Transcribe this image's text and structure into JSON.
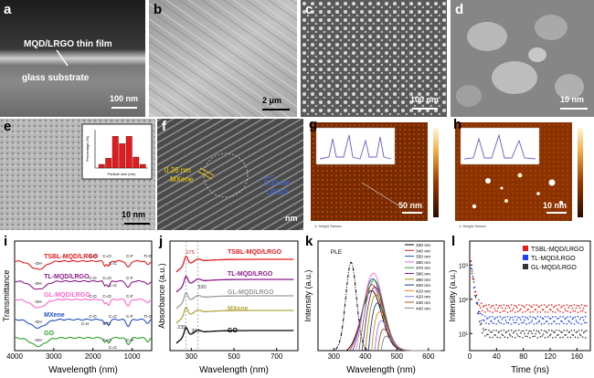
{
  "panels": {
    "a": {
      "label": "a",
      "film_text": "MQD/LRGO thin film",
      "substrate_text": "glass substrate",
      "scale": "100 nm"
    },
    "b": {
      "label": "b",
      "scale": "2 μm"
    },
    "c": {
      "label": "c",
      "scale": "100 nm"
    },
    "d": {
      "label": "d",
      "scale": "10 nm"
    },
    "e": {
      "label": "e",
      "scale": "10 nm",
      "inset_ylabel": "Percentage (%)",
      "inset_xlabel": "Particle size (nm)"
    },
    "f": {
      "label": "f",
      "mxene_text": "0.26 nm",
      "mxene_name": "MXene",
      "lrgo_text": "0.33 nm",
      "lrgo_name": "LRGO",
      "scale": "nm"
    },
    "g": {
      "label": "g",
      "scale": "50 nm",
      "footer": "1: Height Sensor"
    },
    "h": {
      "label": "h",
      "scale": "10 nm",
      "footer": "1: Height Sensor"
    },
    "i": {
      "label": "i"
    },
    "j": {
      "label": "j"
    },
    "k": {
      "label": "k"
    },
    "l": {
      "label": "l"
    }
  },
  "chart_data": [
    {
      "panel": "e-inset",
      "type": "bar",
      "values": [
        3,
        8,
        26,
        20,
        26,
        9,
        3
      ],
      "xlabel": "Particle size (nm)",
      "ylabel": "Percentage (%)"
    },
    {
      "panel": "i",
      "type": "line",
      "xlabel": "Wavelength (nm)",
      "ylabel": "Transmittance",
      "xlim": [
        4000,
        500
      ],
      "xticks": [
        "4000",
        "3000",
        "2000",
        "1000"
      ],
      "series": [
        {
          "name": "TSBL-MQD/LRGO",
          "color": "#e41a1c"
        },
        {
          "name": "TL-MQD/LRGO",
          "color": "#8b1a8b"
        },
        {
          "name": "GL-MQD/LRGO",
          "color": "#ff66cc"
        },
        {
          "name": "MXene",
          "color": "#1f4fbf"
        },
        {
          "name": "GO",
          "color": "#2ca02c"
        }
      ],
      "annotations": [
        "-OH",
        "-OH",
        "-OH",
        "-OH",
        "-OH",
        "C-O",
        "C=O",
        "C=C",
        "C-F",
        "Ti-O",
        "C-O",
        "C=O",
        "C=C",
        "C-F",
        "C-O",
        "C=O",
        "C-F",
        "C-O",
        "C=C",
        "C-O",
        "C-H",
        "C-F",
        "Ti-O",
        "C=O",
        "C=C",
        "C-O"
      ]
    },
    {
      "panel": "j",
      "type": "line",
      "xlabel": "Wavelength (nm)",
      "ylabel": "Absorbance (a.u.)",
      "xlim": [
        200,
        800
      ],
      "xticks": [
        "300",
        "500",
        "700"
      ],
      "annotations": [
        "275",
        "330",
        "235",
        "300"
      ],
      "series": [
        {
          "name": "TSBL-MQD/LRGO",
          "color": "#e41a1c"
        },
        {
          "name": "TL-MQD/LRGO",
          "color": "#8b1a8b"
        },
        {
          "name": "GL-MQD/LRGO",
          "color": "#9a9a9a"
        },
        {
          "name": "MXene",
          "color": "#b5a642"
        },
        {
          "name": "GO",
          "color": "#000000"
        }
      ]
    },
    {
      "panel": "k",
      "type": "line",
      "xlabel": "Wavelength (nm)",
      "ylabel": "Intensity (a.u.)",
      "xlim": [
        250,
        650
      ],
      "xticks": [
        "300",
        "400",
        "500",
        "600"
      ],
      "ple_label": "PLE",
      "excitation": [
        {
          "name": "330 nm",
          "color": "#000000"
        },
        {
          "name": "340 nm",
          "color": "#e41a1c"
        },
        {
          "name": "350 nm",
          "color": "#1f4fbf"
        },
        {
          "name": "360 nm",
          "color": "#ff66cc"
        },
        {
          "name": "370 nm",
          "color": "#2ca02c"
        },
        {
          "name": "380 nm",
          "color": "#8b1a8b"
        },
        {
          "name": "390 nm",
          "color": "#9a9a00"
        },
        {
          "name": "400 nm",
          "color": "#0b3d91"
        },
        {
          "name": "410 nm",
          "color": "#ff7f0e"
        },
        {
          "name": "420 nm",
          "color": "#7f7fff"
        },
        {
          "name": "430 nm",
          "color": "#a0522d"
        },
        {
          "name": "440 nm",
          "color": "#808080"
        }
      ]
    },
    {
      "panel": "l",
      "type": "scatter",
      "xlabel": "Time (ns)",
      "ylabel": "Intensity (a.u.)",
      "xlim": [
        0,
        180
      ],
      "xticks": [
        "0",
        "40",
        "80",
        "120",
        "160"
      ],
      "yscale": "log",
      "yticks": [
        "10¹",
        "10²",
        "10³"
      ],
      "series": [
        {
          "name": "TSBL-MQD/LRGO",
          "color": "#e41a1c",
          "plateau": 55
        },
        {
          "name": "TL-MQD/LRGO",
          "color": "#1f3fff",
          "plateau": 25
        },
        {
          "name": "GL-MQD/LRGO",
          "color": "#333333",
          "plateau": 10
        }
      ]
    }
  ]
}
